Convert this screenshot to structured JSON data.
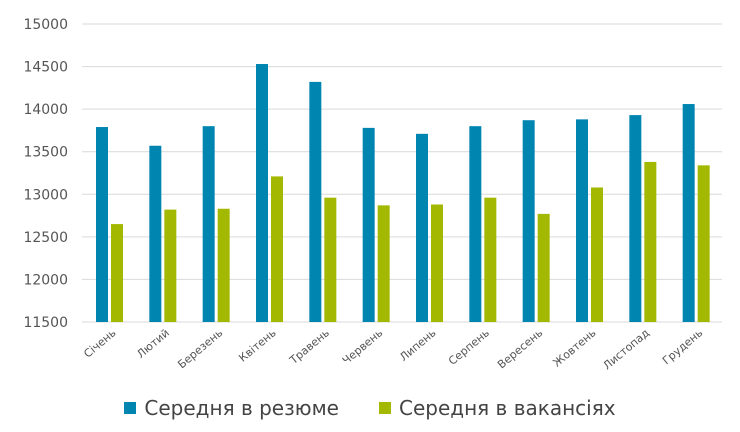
{
  "chart_data": {
    "type": "bar",
    "categories": [
      "Січень",
      "Лютий",
      "Березень",
      "Квітень",
      "Травень",
      "Червень",
      "Липень",
      "Серпень",
      "Вересень",
      "Жовтень",
      "Листопад",
      "Грудень"
    ],
    "series": [
      {
        "name": "Середня в резюме",
        "color": "#0085b0",
        "values": [
          13790,
          13570,
          13800,
          14530,
          14320,
          13780,
          13710,
          13800,
          13870,
          13880,
          13930,
          14060
        ]
      },
      {
        "name": "Середня в вакансіях",
        "color": "#a3b800",
        "values": [
          12650,
          12820,
          12830,
          13210,
          12960,
          12870,
          12880,
          12960,
          12770,
          13080,
          13380,
          13340
        ]
      }
    ],
    "ylim": [
      11500,
      15000
    ],
    "yticks": [
      "11500",
      "12000",
      "12500",
      "13000",
      "13500",
      "14000",
      "14500",
      "15000"
    ],
    "grid": true,
    "legend": "bottom"
  }
}
